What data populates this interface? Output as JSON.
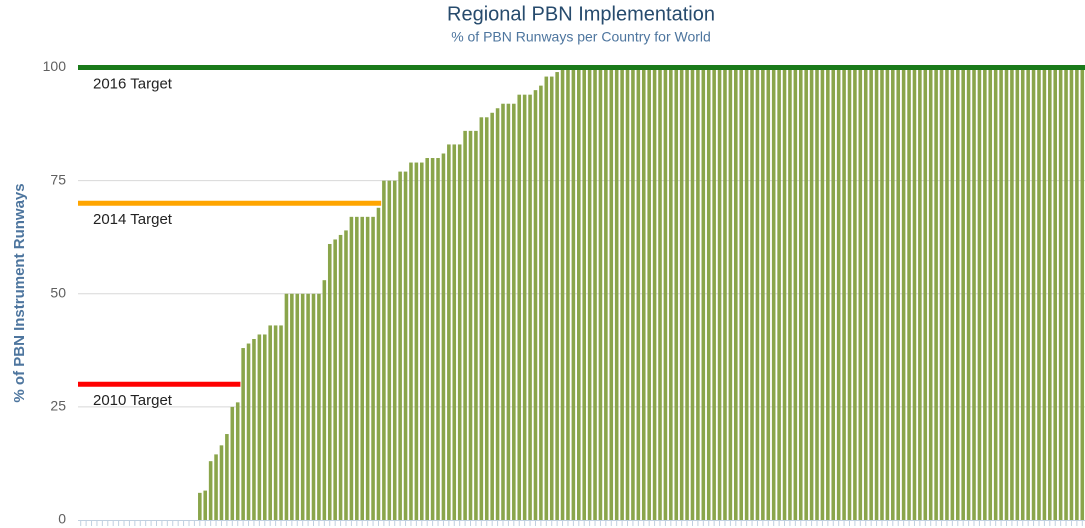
{
  "chart_data": {
    "type": "bar",
    "title": "Regional PBN Implementation",
    "subtitle": "% of PBN Runways per Country for World",
    "y_label": "% of PBN Instrument Runways",
    "color": "#8aa54b",
    "ylim": [
      0,
      101
    ],
    "yticks": [
      0,
      25,
      50,
      75,
      100
    ],
    "grid": true,
    "targets": [
      {
        "name": "2016 Target",
        "value": 100,
        "color": "#1a7a1a"
      },
      {
        "name": "2014 Target",
        "value": 70,
        "color": "#ffa500"
      },
      {
        "name": "2010 Target",
        "value": 30,
        "color": "#ff0000"
      }
    ],
    "categories": [
      null,
      null,
      null,
      null,
      null,
      null,
      null,
      null,
      null,
      null,
      null,
      null,
      null,
      null,
      null,
      null,
      null,
      null,
      null,
      null,
      null,
      null,
      null,
      null,
      null,
      null,
      null,
      null,
      null,
      null,
      null,
      null,
      null,
      null,
      null,
      null,
      null,
      null,
      null,
      null,
      null,
      null,
      null,
      null,
      null,
      null,
      null,
      null,
      null,
      null,
      null,
      null,
      null,
      null,
      null,
      null,
      null,
      null,
      null,
      null,
      null,
      null,
      null,
      null,
      null,
      null,
      null,
      null,
      null,
      null,
      null,
      null,
      null,
      null,
      null,
      null,
      null,
      null,
      null,
      null,
      null,
      null,
      null,
      null,
      null,
      null,
      null,
      null,
      null,
      null,
      null,
      null,
      null,
      null,
      null,
      null,
      null,
      null,
      null,
      null,
      null,
      null,
      null,
      null,
      null,
      null,
      null,
      null,
      null,
      null,
      null,
      null,
      null,
      null,
      null,
      null,
      null,
      null,
      null,
      null,
      null,
      null,
      null,
      null,
      null,
      null,
      null,
      null,
      null,
      null,
      null,
      null,
      null,
      null,
      null,
      null,
      null,
      null,
      null,
      null,
      null,
      null,
      null,
      null,
      null,
      null,
      null,
      null,
      null,
      null,
      null,
      null,
      null,
      null,
      null,
      null,
      null,
      null,
      null,
      null,
      null,
      null,
      null,
      null,
      null,
      null,
      null,
      null,
      null,
      null,
      null,
      null,
      null,
      null,
      null,
      null,
      null,
      null,
      null,
      null,
      null,
      null,
      null,
      null,
      null,
      null
    ],
    "values": [
      0,
      0,
      0,
      0,
      0,
      0,
      0,
      0,
      0,
      0,
      0,
      0,
      0,
      0,
      0,
      0,
      0,
      0,
      0,
      0,
      0,
      0,
      6,
      6.5,
      13,
      14.5,
      16.5,
      19,
      25,
      26,
      38,
      39,
      40,
      41,
      41,
      43,
      43,
      43,
      50,
      50,
      50,
      50,
      50,
      50,
      50,
      53,
      61,
      62,
      63,
      64,
      67,
      67,
      67,
      67,
      67,
      69,
      75,
      75,
      75,
      77,
      77,
      79,
      79,
      79,
      80,
      80,
      80,
      81,
      83,
      83,
      83,
      86,
      86,
      86,
      89,
      89,
      90,
      91,
      92,
      92,
      92,
      94,
      94,
      94,
      95,
      96,
      98,
      98,
      99,
      100,
      100,
      100,
      100,
      100,
      100,
      100,
      100,
      100,
      100,
      100,
      100,
      100,
      100,
      100,
      100,
      100,
      100,
      100,
      100,
      100,
      100,
      100,
      100,
      100,
      100,
      100,
      100,
      100,
      100,
      100,
      100,
      100,
      100,
      100,
      100,
      100,
      100,
      100,
      100,
      100,
      100,
      100,
      100,
      100,
      100,
      100,
      100,
      100,
      100,
      100,
      100,
      100,
      100,
      100,
      100,
      100,
      100,
      100,
      100,
      100,
      100,
      100,
      100,
      100,
      100,
      100,
      100,
      100,
      100,
      100,
      100,
      100,
      100,
      100,
      100,
      100,
      100,
      100,
      100,
      100,
      100,
      100,
      100,
      100,
      100,
      100,
      100,
      100,
      100,
      100,
      100,
      100,
      100,
      100,
      100,
      100
    ]
  }
}
